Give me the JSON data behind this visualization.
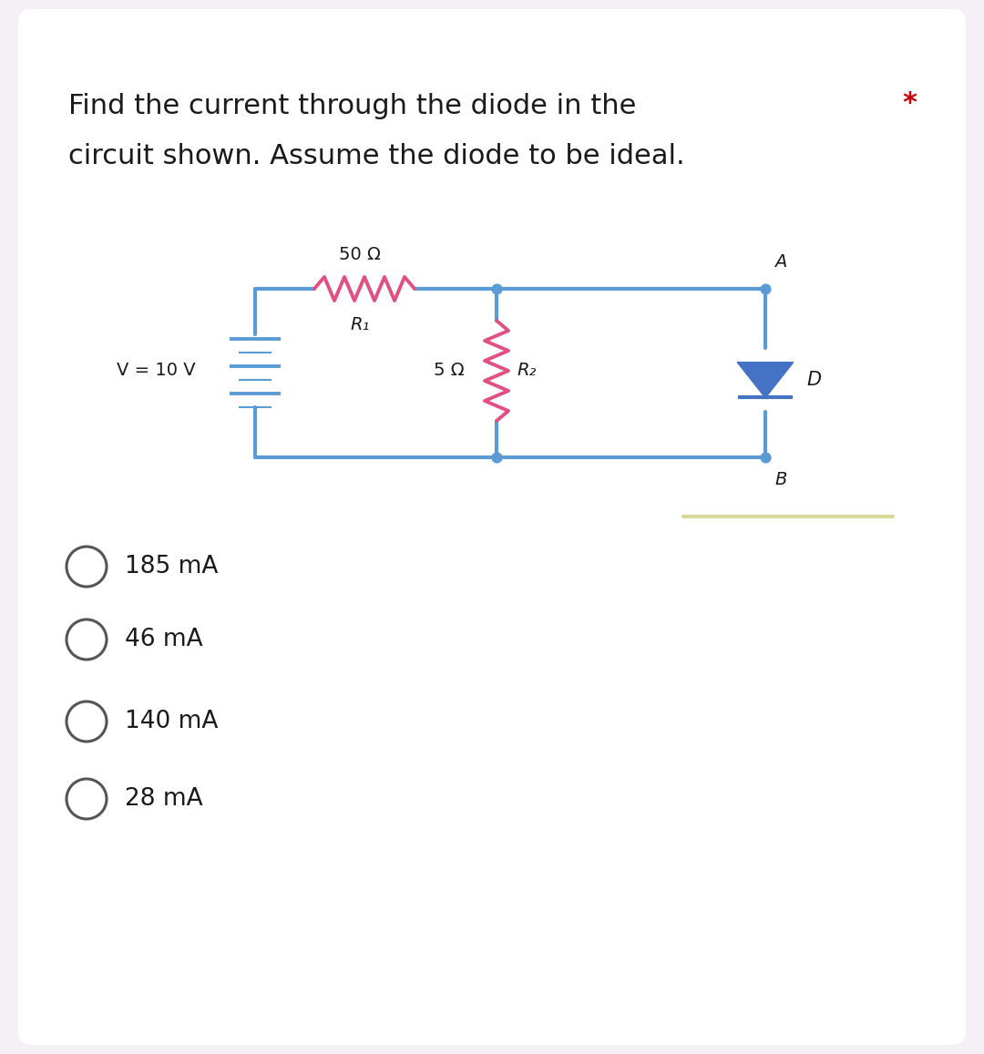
{
  "title_line1": "Find the current through the diode in the",
  "title_line2": "circuit shown. Assume the diode to be ideal.",
  "star_text": "*",
  "bg_color": "#f5f0f5",
  "card_color": "#ffffff",
  "wire_color": "#5b9bd5",
  "resistor1_color": "#e05080",
  "resistor2_color": "#e05080",
  "diode_color": "#4472c4",
  "battery_color": "#5b9bd5",
  "text_color": "#1a1a1a",
  "star_color": "#cc0000",
  "choice_circle_color": "#555555",
  "choices": [
    "185 mA",
    "46 mA",
    "140 mA",
    "28 mA"
  ],
  "r1_label": "50 Ω",
  "r1_sub": "R₁",
  "r2_label": "5 Ω",
  "r2_sub": "R₂",
  "voltage_label": "V = 10 V",
  "diode_label": "D",
  "node_a_label": "A",
  "node_b_label": "B"
}
